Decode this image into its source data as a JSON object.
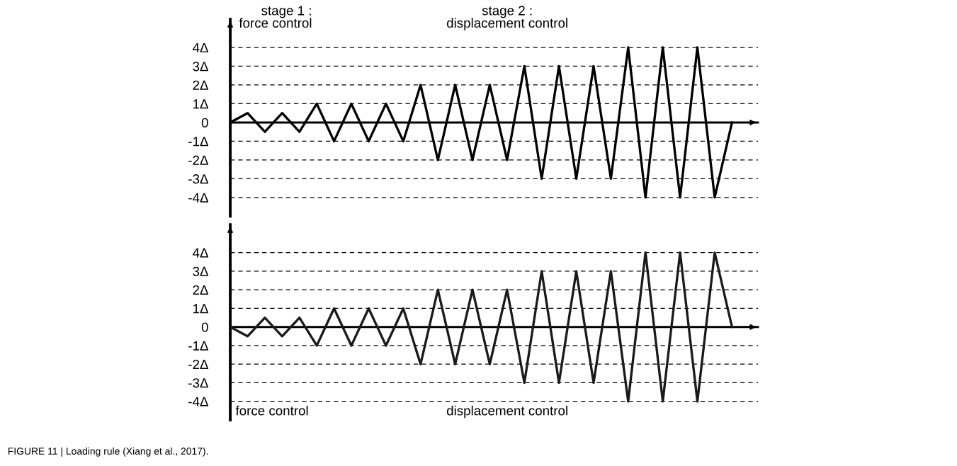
{
  "chart_data": [
    {
      "type": "line",
      "categories": [
        null,
        null,
        null,
        null,
        null,
        null,
        null,
        null,
        null,
        null,
        null,
        null,
        null,
        null,
        null,
        null,
        null,
        null,
        null,
        null,
        null,
        null,
        null,
        null,
        null,
        null,
        null,
        null,
        null,
        null
      ],
      "series": [
        {
          "color": "#000000",
          "values": [
            0,
            0.5,
            -0.5,
            0.5,
            -0.5,
            1,
            -1,
            1,
            -1,
            1,
            -1,
            2,
            -2,
            2,
            -2,
            2,
            -2,
            3,
            -3,
            3,
            -3,
            3,
            -3,
            4,
            -4,
            4,
            -4,
            4,
            -4,
            0
          ]
        }
      ],
      "ylim": [
        -5,
        5.5
      ],
      "yticks": [
        {
          "value": 4,
          "label": "4Δ"
        },
        {
          "value": 3,
          "label": "3Δ"
        },
        {
          "value": 2,
          "label": "2Δ"
        },
        {
          "value": 1,
          "label": "1Δ"
        },
        0,
        {
          "value": -1,
          "label": "-1Δ"
        },
        {
          "value": -2,
          "label": "-2Δ"
        },
        {
          "value": -3,
          "label": "-3Δ"
        },
        {
          "value": -4,
          "label": "-4Δ"
        }
      ],
      "grid": "y",
      "marker": "none",
      "line_style": "solid",
      "tick_labels": "y",
      "annotations": [
        "stage 1 :\nforce control",
        "stage 2 :\ndisplacement control"
      ]
    },
    {
      "type": "line",
      "categories": [
        null,
        null,
        null,
        null,
        null,
        null,
        null,
        null,
        null,
        null,
        null,
        null,
        null,
        null,
        null,
        null,
        null,
        null,
        null,
        null,
        null,
        null,
        null,
        null,
        null,
        null,
        null,
        null,
        null,
        null
      ],
      "series": [
        {
          "color": "#1a1a1a",
          "values": [
            0,
            -0.5,
            0.5,
            -0.5,
            0.5,
            -1,
            1,
            -1,
            1,
            -1,
            1,
            -2,
            2,
            -2,
            2,
            -2,
            2,
            -3,
            3,
            -3,
            3,
            -3,
            3,
            -4,
            4,
            -4,
            4,
            -4,
            4,
            0
          ]
        }
      ],
      "ylim": [
        -5,
        5.5
      ],
      "yticks": [
        {
          "value": 4,
          "label": "4Δ"
        },
        {
          "value": 3,
          "label": "3Δ"
        },
        {
          "value": 2,
          "label": "2Δ"
        },
        {
          "value": 1,
          "label": "1Δ"
        },
        0,
        {
          "value": -1,
          "label": "-1Δ"
        },
        {
          "value": -2,
          "label": "-2Δ"
        },
        {
          "value": -3,
          "label": "-3Δ"
        },
        {
          "value": -4,
          "label": "-4Δ"
        }
      ],
      "grid": "y",
      "marker": "none",
      "line_style": "solid",
      "tick_labels": "y",
      "annotations": [
        "force control",
        "displacement control",
        "FIGURE 11 | Loading rule (Xiang et al., 2017)."
      ]
    }
  ]
}
